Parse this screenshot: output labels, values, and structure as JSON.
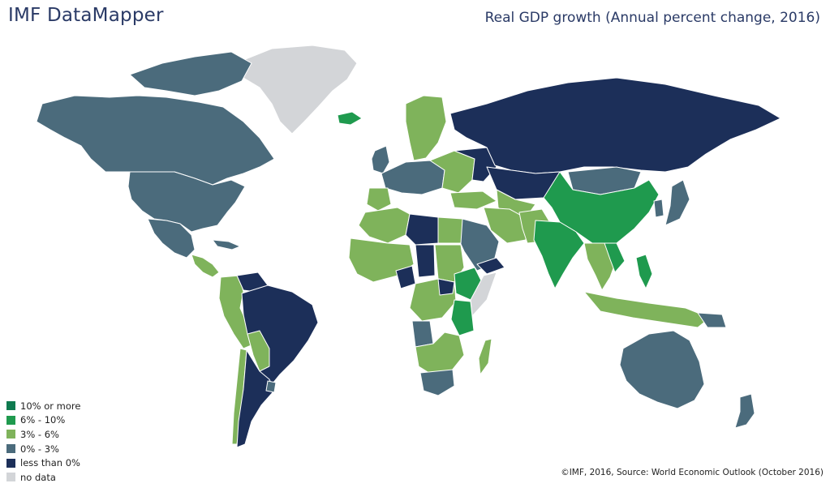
{
  "header": {
    "app_title": "IMF DataMapper",
    "map_title": "Real GDP growth (Annual percent change, 2016)"
  },
  "legend": [
    {
      "label": "10% or more",
      "color": "#0e7a4f"
    },
    {
      "label": "6% - 10%",
      "color": "#1f9a4e"
    },
    {
      "label": "3% - 6%",
      "color": "#7fb35b"
    },
    {
      "label": "0% - 3%",
      "color": "#4b6b7c"
    },
    {
      "label": "less than 0%",
      "color": "#1c2f59"
    },
    {
      "label": "no data",
      "color": "#d3d5d8"
    }
  ],
  "footer": {
    "source": "©IMF, 2016, Source: World Economic Outlook (October 2016)"
  }
}
